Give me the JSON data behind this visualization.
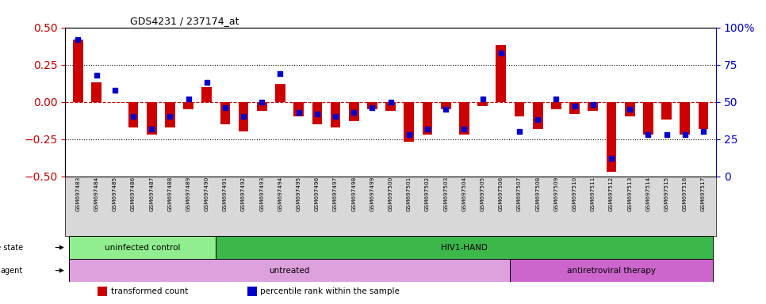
{
  "title": "GDS4231 / 237174_at",
  "samples": [
    "GSM697483",
    "GSM697484",
    "GSM697485",
    "GSM697486",
    "GSM697487",
    "GSM697488",
    "GSM697489",
    "GSM697490",
    "GSM697491",
    "GSM697492",
    "GSM697493",
    "GSM697494",
    "GSM697495",
    "GSM697496",
    "GSM697497",
    "GSM697498",
    "GSM697499",
    "GSM697500",
    "GSM697501",
    "GSM697502",
    "GSM697503",
    "GSM697504",
    "GSM697505",
    "GSM697506",
    "GSM697507",
    "GSM697508",
    "GSM697509",
    "GSM697510",
    "GSM697511",
    "GSM697512",
    "GSM697513",
    "GSM697514",
    "GSM697515",
    "GSM697516",
    "GSM697517"
  ],
  "transformed_count": [
    0.42,
    0.13,
    0.0,
    -0.17,
    -0.22,
    -0.17,
    -0.05,
    0.1,
    -0.15,
    -0.2,
    -0.06,
    0.12,
    -0.1,
    -0.15,
    -0.17,
    -0.13,
    -0.05,
    -0.06,
    -0.27,
    -0.22,
    -0.05,
    -0.22,
    -0.03,
    0.38,
    -0.1,
    -0.18,
    -0.05,
    -0.08,
    -0.06,
    -0.47,
    -0.1,
    -0.22,
    -0.12,
    -0.22,
    -0.18
  ],
  "percentile_rank": [
    92,
    68,
    58,
    40,
    32,
    40,
    52,
    63,
    46,
    40,
    50,
    69,
    43,
    42,
    40,
    43,
    46,
    50,
    28,
    32,
    45,
    32,
    52,
    83,
    30,
    38,
    52,
    47,
    48,
    12,
    45,
    28,
    28,
    28,
    30
  ],
  "disease_state_groups": [
    {
      "label": "uninfected control",
      "start": 0,
      "end": 8,
      "color": "#90EE90"
    },
    {
      "label": "HIV1-HAND",
      "start": 8,
      "end": 35,
      "color": "#3CB84A"
    }
  ],
  "agent_groups": [
    {
      "label": "untreated",
      "start": 0,
      "end": 24,
      "color": "#DDA0DD"
    },
    {
      "label": "antiretroviral therapy",
      "start": 24,
      "end": 35,
      "color": "#CC66CC"
    }
  ],
  "bar_color": "#CC0000",
  "dot_color": "#0000CC",
  "ylim": [
    -0.5,
    0.5
  ],
  "y2lim": [
    0,
    100
  ],
  "yticks_left": [
    -0.5,
    -0.25,
    0,
    0.25,
    0.5
  ],
  "yticks_right": [
    0,
    25,
    50,
    75,
    100
  ],
  "hlines_dotted": [
    -0.25,
    0.25
  ],
  "hline_dashed_color": "#CC0000",
  "left_axis_color": "#CC0000",
  "right_axis_color": "#0000CC",
  "legend_items": [
    {
      "label": "transformed count",
      "color": "#CC0000"
    },
    {
      "label": "percentile rank within the sample",
      "color": "#0000CC"
    }
  ],
  "bg_color": "#ffffff",
  "xtick_bg": "#d8d8d8"
}
